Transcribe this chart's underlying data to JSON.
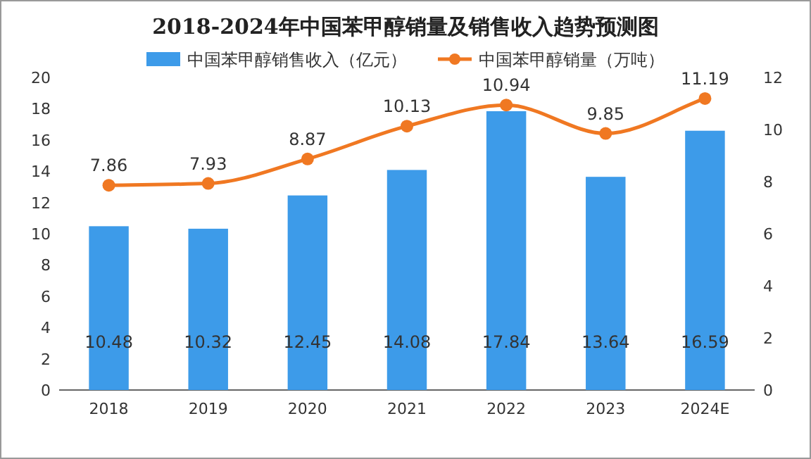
{
  "chart_data": {
    "type": "bar",
    "title": "2018-2024年中国苯甲醇销量及销售收入趋势预测图",
    "categories": [
      "2018",
      "2019",
      "2020",
      "2021",
      "2022",
      "2023",
      "2024E"
    ],
    "series": [
      {
        "name": "中国苯甲醇销售收入（亿元）",
        "color": "#3d9be9",
        "values": [
          10.48,
          10.32,
          12.45,
          14.08,
          17.84,
          13.64,
          16.59
        ]
      },
      {
        "name": "中国苯甲醇销量（万吨）",
        "type": "line",
        "axis": "y2",
        "color": "#f07822",
        "marker": "circle",
        "values": [
          7.86,
          7.93,
          8.87,
          10.13,
          10.94,
          9.85,
          11.19
        ]
      }
    ],
    "ylim": [
      0,
      20
    ],
    "yticks": [
      0,
      2,
      4,
      6,
      8,
      10,
      12,
      14,
      16,
      18,
      20
    ],
    "y2lim": [
      0,
      12
    ],
    "y2ticks": [
      0,
      2,
      4,
      6,
      8,
      10,
      12
    ],
    "data_labels": true,
    "legend": "top"
  }
}
